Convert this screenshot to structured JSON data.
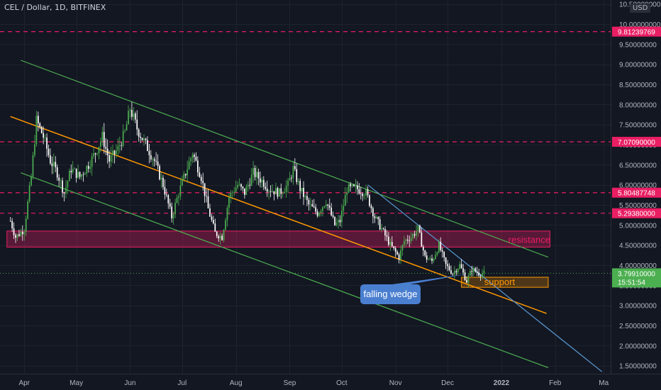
{
  "header": {
    "title": "CEL / Dollar, 1D, BITFINEX",
    "currency": "USD"
  },
  "price_axis": {
    "ticks": [
      "10.50000000",
      "10.00000000",
      "9.50000000",
      "9.00000000",
      "8.50000000",
      "8.00000000",
      "7.50000000",
      "7.00000000",
      "6.50000000",
      "6.00000000",
      "5.50000000",
      "5.00000000",
      "4.50000000",
      "4.00000000",
      "3.50000000",
      "3.00000000",
      "2.50000000",
      "2.00000000",
      "1.50000000"
    ],
    "tick_values": [
      10.5,
      10,
      9.5,
      9,
      8.5,
      8,
      7.5,
      7,
      6.5,
      6,
      5.5,
      5,
      4.5,
      4,
      3.5,
      3,
      2.5,
      2,
      1.5
    ]
  },
  "time_axis": {
    "labels": [
      "Apr",
      "May",
      "Jun",
      "Jul",
      "Aug",
      "Sep",
      "Oct",
      "Nov",
      "Dec",
      "2022",
      "Feb",
      "Ma"
    ],
    "label_dates": [
      "2021-04-01",
      "2021-05-01",
      "2021-06-01",
      "2021-07-01",
      "2021-08-01",
      "2021-09-01",
      "2021-10-01",
      "2021-11-01",
      "2021-12-01",
      "2022-01-01",
      "2022-02-01",
      "2022-03-01"
    ]
  },
  "levels": [
    {
      "value": 9.81239769,
      "label": "9.81239769",
      "color": "#e91e63"
    },
    {
      "value": 7.0709,
      "label": "7.07090000",
      "color": "#e91e63"
    },
    {
      "value": 5.80487748,
      "label": "5.80487748",
      "color": "#e91e63"
    },
    {
      "value": 5.2938,
      "label": "5.29380000",
      "color": "#e91e63"
    }
  ],
  "current_price": {
    "value": 3.7991,
    "label": "3.79910000",
    "countdown": "15:51:54",
    "color": "#4caf50"
  },
  "annotations": {
    "resistance": {
      "label": "resistance",
      "ymin": 4.45,
      "ymax": 4.85,
      "color": "#e91e63"
    },
    "support": {
      "label": "support",
      "ymin": 3.45,
      "ymax": 3.7,
      "color": "#ff9800"
    },
    "wedge": {
      "label": "falling wedge",
      "color": "#4a7fd0"
    }
  },
  "colors": {
    "up": "#4caf50",
    "down": "#ffffff",
    "channel": "#4caf50",
    "trend": "#ff9800",
    "wedge_line": "#5b9bd5",
    "grid": "#1e222d",
    "axis_text": "#b2b5be"
  },
  "chart_data": {
    "type": "candlestick",
    "title": "CEL / Dollar, 1D, BITFINEX",
    "y_scale": "linear",
    "ylim": [
      1.3,
      10.6
    ],
    "xlim": [
      "2021-03-18",
      "2022-03-05"
    ],
    "grid": true,
    "price_path": [
      [
        "2021-03-24",
        5.1
      ],
      [
        "2021-03-27",
        4.7
      ],
      [
        "2021-04-01",
        4.9
      ],
      [
        "2021-04-05",
        6.2
      ],
      [
        "2021-04-08",
        7.6
      ],
      [
        "2021-04-12",
        7.2
      ],
      [
        "2021-04-16",
        6.6
      ],
      [
        "2021-04-20",
        6.3
      ],
      [
        "2021-04-24",
        5.8
      ],
      [
        "2021-04-28",
        6.4
      ],
      [
        "2021-05-03",
        6.2
      ],
      [
        "2021-05-08",
        6.5
      ],
      [
        "2021-05-12",
        6.8
      ],
      [
        "2021-05-16",
        7.2
      ],
      [
        "2021-05-20",
        6.6
      ],
      [
        "2021-05-25",
        6.9
      ],
      [
        "2021-05-29",
        7.3
      ],
      [
        "2021-06-01",
        7.9
      ],
      [
        "2021-06-05",
        7.4
      ],
      [
        "2021-06-10",
        7.0
      ],
      [
        "2021-06-15",
        6.6
      ],
      [
        "2021-06-20",
        6.0
      ],
      [
        "2021-06-25",
        5.2
      ],
      [
        "2021-06-29",
        5.8
      ],
      [
        "2021-07-03",
        6.3
      ],
      [
        "2021-07-07",
        6.8
      ],
      [
        "2021-07-12",
        6.2
      ],
      [
        "2021-07-16",
        5.4
      ],
      [
        "2021-07-20",
        4.8
      ],
      [
        "2021-07-24",
        4.7
      ],
      [
        "2021-07-28",
        5.7
      ],
      [
        "2021-08-02",
        6.0
      ],
      [
        "2021-08-06",
        5.8
      ],
      [
        "2021-08-11",
        6.3
      ],
      [
        "2021-08-16",
        6.1
      ],
      [
        "2021-08-20",
        5.9
      ],
      [
        "2021-08-26",
        5.8
      ],
      [
        "2021-08-31",
        6.0
      ],
      [
        "2021-09-03",
        6.4
      ],
      [
        "2021-09-07",
        5.9
      ],
      [
        "2021-09-12",
        5.5
      ],
      [
        "2021-09-17",
        5.3
      ],
      [
        "2021-09-22",
        5.6
      ],
      [
        "2021-09-27",
        5.0
      ],
      [
        "2021-09-30",
        5.1
      ],
      [
        "2021-10-04",
        5.9
      ],
      [
        "2021-10-10",
        5.9
      ],
      [
        "2021-10-15",
        5.8
      ],
      [
        "2021-10-20",
        5.2
      ],
      [
        "2021-10-24",
        4.9
      ],
      [
        "2021-10-29",
        4.5
      ],
      [
        "2021-11-03",
        4.2
      ],
      [
        "2021-11-06",
        4.6
      ],
      [
        "2021-11-10",
        4.7
      ],
      [
        "2021-11-14",
        4.9
      ],
      [
        "2021-11-18",
        4.2
      ],
      [
        "2021-11-22",
        4.1
      ],
      [
        "2021-11-26",
        4.5
      ],
      [
        "2021-11-30",
        4.0
      ],
      [
        "2021-12-04",
        3.8
      ],
      [
        "2021-12-08",
        4.0
      ],
      [
        "2021-12-12",
        3.6
      ],
      [
        "2021-12-15",
        3.9
      ],
      [
        "2021-12-19",
        3.8
      ],
      [
        "2021-12-22",
        3.8
      ]
    ],
    "trendlines": [
      {
        "name": "channel-upper",
        "from": [
          "2021-03-30",
          9.1
        ],
        "to": [
          "2022-01-28",
          4.2
        ]
      },
      {
        "name": "channel-lower",
        "from": [
          "2021-03-30",
          6.3
        ],
        "to": [
          "2022-01-28",
          1.45
        ]
      },
      {
        "name": "orange-trend",
        "from": [
          "2021-03-24",
          7.7
        ],
        "to": [
          "2022-01-27",
          2.8
        ]
      },
      {
        "name": "wedge-line",
        "from": [
          "2021-10-16",
          6.0
        ],
        "to": [
          "2022-02-28",
          1.35
        ]
      }
    ]
  }
}
